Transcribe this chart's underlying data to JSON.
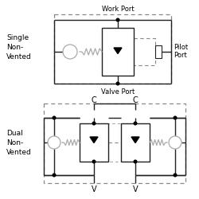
{
  "bg_color": "#ffffff",
  "line_color": "#222222",
  "dash_color": "#888888",
  "gray_color": "#aaaaaa",
  "text_color": "#000000",
  "fig_width": 2.5,
  "fig_height": 2.5,
  "dpi": 100,
  "labels": {
    "single_label": [
      "Single",
      "Non-",
      "Vented"
    ],
    "dual_label": [
      "Dual",
      "Non-",
      "Vented"
    ],
    "work_port": "Work Port",
    "valve_port": "Valve Port",
    "pilot_port": [
      "Pilot",
      "Port"
    ],
    "C_left": "C",
    "C_right": "C",
    "V_left": "V",
    "V_right": "V"
  }
}
